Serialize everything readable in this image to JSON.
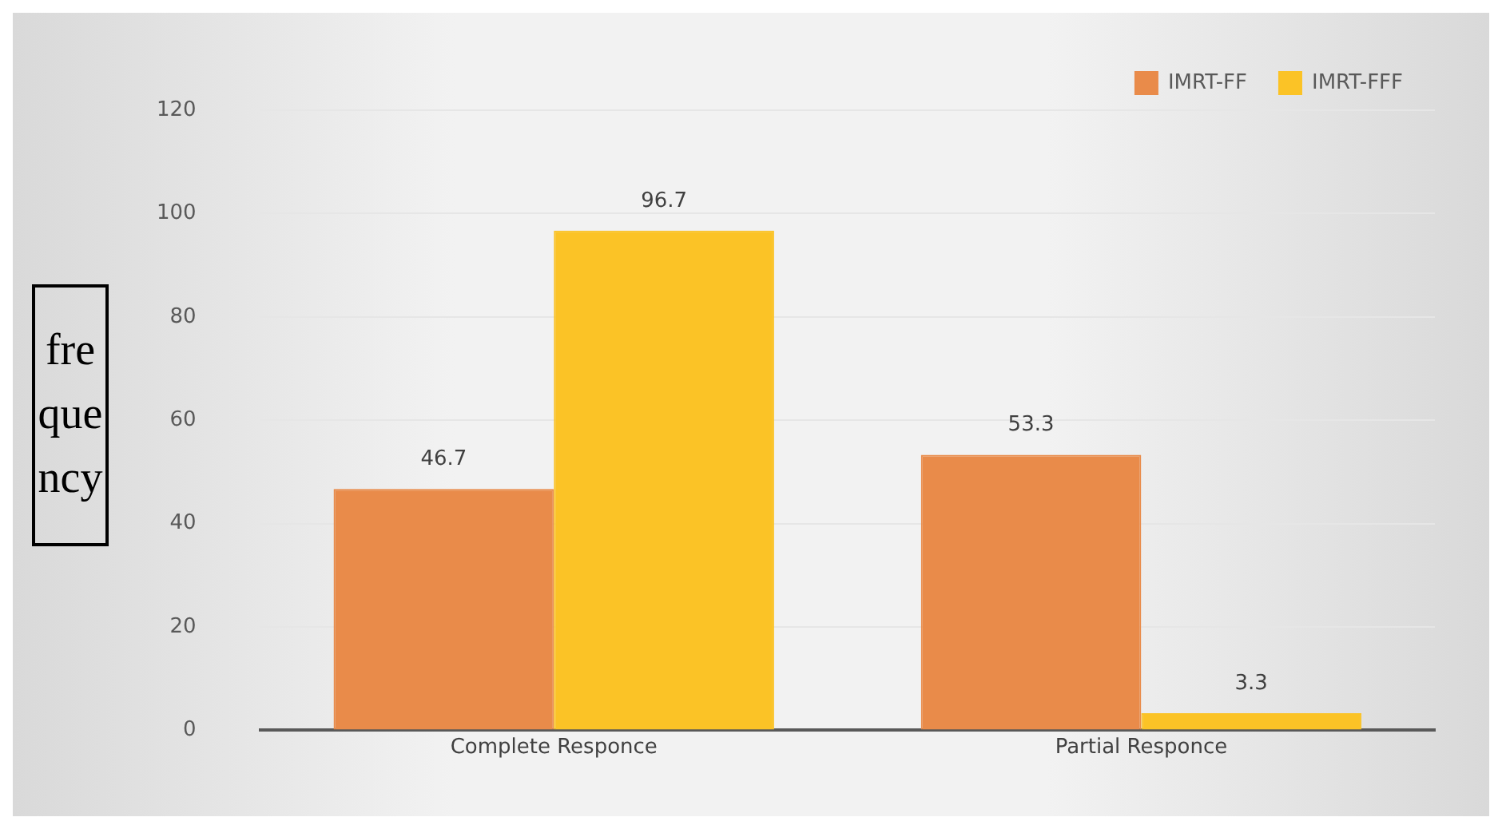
{
  "chart_data": {
    "type": "bar",
    "ylabel": "frequency",
    "categories": [
      "Complete Responce",
      "Partial Responce"
    ],
    "series": [
      {
        "name": "IMRT-FF",
        "color": "#e98b4a",
        "values": [
          46.7,
          53.3
        ]
      },
      {
        "name": "IMRT-FFF",
        "color": "#fbc326",
        "values": [
          96.7,
          3.3
        ]
      }
    ],
    "ylim": [
      0,
      120
    ],
    "yticks": [
      0,
      20,
      40,
      60,
      80,
      100,
      120
    ],
    "grid": "y",
    "legend": "top right",
    "data_labels": true
  }
}
